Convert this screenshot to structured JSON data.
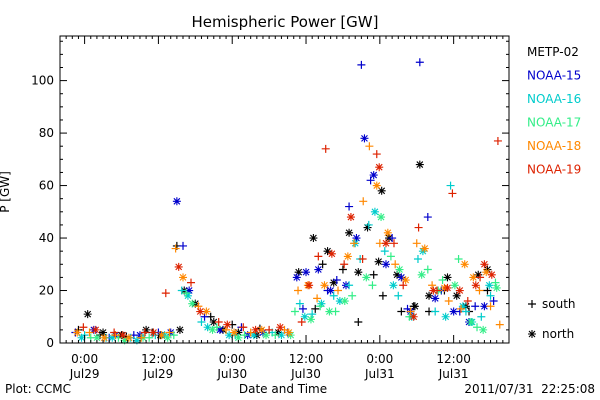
{
  "chart_data": {
    "type": "scatter",
    "title": "Hemispheric Power [GW]",
    "xlabel": "Date and Time",
    "ylabel": "P [GW]",
    "x_range_hours": [
      -4,
      69
    ],
    "ylim": [
      0,
      117
    ],
    "y_ticks": [
      0,
      20,
      40,
      60,
      80,
      100
    ],
    "x_ticks": [
      {
        "hour": 0,
        "time": "0:00",
        "date": "Jul29"
      },
      {
        "hour": 12,
        "time": "12:00",
        "date": "Jul29"
      },
      {
        "hour": 24,
        "time": "0:00",
        "date": "Jul30"
      },
      {
        "hour": 36,
        "time": "12:00",
        "date": "Jul30"
      },
      {
        "hour": 48,
        "time": "0:00",
        "date": "Jul31"
      },
      {
        "hour": 60,
        "time": "12:00",
        "date": "Jul31"
      }
    ],
    "grid": false,
    "legend_position": "right",
    "marker_legend": [
      {
        "symbol": "+",
        "label": "south"
      },
      {
        "symbol": "*",
        "label": "north"
      }
    ],
    "series": [
      {
        "name": "METP-02",
        "color": "#000000",
        "south": [
          [
            -1.0,
            5.0
          ],
          [
            2.5,
            3.0
          ],
          [
            6.8,
            2.5
          ],
          [
            11.0,
            4.0
          ],
          [
            15.0,
            37.0
          ],
          [
            20.5,
            10.0
          ],
          [
            24.0,
            7.0
          ],
          [
            28.5,
            5.5
          ],
          [
            37.5,
            13.0
          ],
          [
            38.7,
            30.0
          ],
          [
            42.0,
            28.0
          ],
          [
            44.5,
            8.0
          ],
          [
            47.0,
            26.0
          ],
          [
            48.5,
            18.0
          ],
          [
            51.5,
            12.0
          ],
          [
            53.5,
            14.0
          ],
          [
            56.0,
            12.0
          ],
          [
            58.5,
            20.0
          ],
          [
            62.5,
            12.0
          ],
          [
            65.5,
            20.0
          ]
        ],
        "north": [
          [
            0.5,
            11.0
          ],
          [
            3.0,
            4.0
          ],
          [
            6.0,
            3.0
          ],
          [
            10.0,
            5.0
          ],
          [
            12.3,
            3.0
          ],
          [
            15.5,
            5.0
          ],
          [
            16.2,
            20.0
          ],
          [
            18.0,
            15.0
          ],
          [
            21.0,
            8.0
          ],
          [
            22.5,
            5.0
          ],
          [
            25.0,
            4.0
          ],
          [
            28.0,
            3.0
          ],
          [
            31.5,
            4.0
          ],
          [
            34.8,
            27.0
          ],
          [
            37.2,
            40.0
          ],
          [
            39.5,
            35.0
          ],
          [
            40.5,
            23.0
          ],
          [
            43.0,
            42.0
          ],
          [
            44.5,
            27.0
          ],
          [
            46.0,
            44.0
          ],
          [
            47.8,
            31.0
          ],
          [
            48.3,
            58.0
          ],
          [
            49.5,
            40.0
          ],
          [
            50.8,
            26.0
          ],
          [
            53.7,
            14.0
          ],
          [
            54.5,
            68.0
          ],
          [
            56.0,
            18.0
          ],
          [
            59.0,
            25.0
          ],
          [
            60.5,
            18.0
          ],
          [
            62.0,
            14.0
          ],
          [
            64.0,
            26.0
          ],
          [
            65.5,
            28.0
          ]
        ]
      },
      {
        "name": "NOAA-15",
        "color": "#0000cc",
        "south": [
          [
            -1.5,
            4.0
          ],
          [
            4.0,
            2.0
          ],
          [
            8.0,
            3.0
          ],
          [
            12.0,
            4.0
          ],
          [
            16.0,
            37.0
          ],
          [
            19.5,
            10.0
          ],
          [
            25.5,
            6.0
          ],
          [
            33.0,
            4.0
          ],
          [
            35.5,
            13.0
          ],
          [
            39.5,
            20.0
          ],
          [
            41.0,
            24.0
          ],
          [
            43.0,
            52.0
          ],
          [
            45.0,
            106.0
          ],
          [
            46.5,
            62.0
          ],
          [
            50.0,
            40.0
          ],
          [
            52.5,
            13.0
          ],
          [
            54.5,
            107.0
          ],
          [
            55.8,
            48.0
          ],
          [
            58.0,
            20.0
          ],
          [
            61.0,
            12.0
          ],
          [
            63.5,
            14.0
          ],
          [
            66.5,
            16.0
          ]
        ],
        "north": [
          [
            1.5,
            5.0
          ],
          [
            5.0,
            3.0
          ],
          [
            9.0,
            3.0
          ],
          [
            14.0,
            4.0
          ],
          [
            15.0,
            54.0
          ],
          [
            17.0,
            20.0
          ],
          [
            22.0,
            5.0
          ],
          [
            26.5,
            3.0
          ],
          [
            29.0,
            4.0
          ],
          [
            34.5,
            25.0
          ],
          [
            36.0,
            27.0
          ],
          [
            38.0,
            28.0
          ],
          [
            40.0,
            20.0
          ],
          [
            42.5,
            22.0
          ],
          [
            44.2,
            40.0
          ],
          [
            45.5,
            78.0
          ],
          [
            47.0,
            64.0
          ],
          [
            49.0,
            30.0
          ],
          [
            51.5,
            25.0
          ],
          [
            53.0,
            12.0
          ],
          [
            57.0,
            17.0
          ],
          [
            60.0,
            12.0
          ],
          [
            62.5,
            8.0
          ],
          [
            65.0,
            14.0
          ]
        ]
      },
      {
        "name": "NOAA-16",
        "color": "#00cccc",
        "south": [
          [
            0.0,
            3.0
          ],
          [
            3.5,
            2.0
          ],
          [
            7.5,
            2.0
          ],
          [
            11.5,
            3.0
          ],
          [
            15.8,
            20.0
          ],
          [
            19.0,
            8.0
          ],
          [
            24.5,
            3.0
          ],
          [
            30.5,
            4.0
          ],
          [
            35.0,
            15.0
          ],
          [
            37.0,
            11.0
          ],
          [
            40.5,
            18.0
          ],
          [
            43.0,
            22.0
          ],
          [
            44.8,
            32.0
          ],
          [
            46.2,
            45.0
          ],
          [
            48.8,
            35.0
          ],
          [
            51.0,
            18.0
          ],
          [
            54.2,
            32.0
          ],
          [
            57.0,
            12.0
          ],
          [
            59.5,
            60.0
          ],
          [
            62.0,
            12.0
          ],
          [
            64.5,
            10.0
          ],
          [
            66.0,
            18.0
          ]
        ],
        "north": [
          [
            -0.5,
            2.0
          ],
          [
            4.5,
            2.0
          ],
          [
            8.5,
            1.0
          ],
          [
            13.0,
            3.0
          ],
          [
            16.8,
            18.0
          ],
          [
            20.0,
            6.0
          ],
          [
            23.5,
            3.0
          ],
          [
            27.5,
            3.0
          ],
          [
            32.0,
            3.0
          ],
          [
            35.8,
            10.0
          ],
          [
            38.5,
            15.0
          ],
          [
            41.5,
            16.0
          ],
          [
            44.0,
            38.0
          ],
          [
            47.2,
            50.0
          ],
          [
            50.2,
            22.0
          ],
          [
            53.2,
            10.0
          ],
          [
            55.0,
            35.0
          ],
          [
            58.7,
            10.0
          ],
          [
            61.5,
            14.0
          ],
          [
            63.0,
            8.0
          ],
          [
            65.8,
            22.0
          ]
        ]
      },
      {
        "name": "NOAA-17",
        "color": "#33ee88",
        "south": [
          [
            1.0,
            2.0
          ],
          [
            5.5,
            2.0
          ],
          [
            10.5,
            2.0
          ],
          [
            14.5,
            3.0
          ],
          [
            16.5,
            19.0
          ],
          [
            21.5,
            6.0
          ],
          [
            26.0,
            3.0
          ],
          [
            31.0,
            3.0
          ],
          [
            34.2,
            12.0
          ],
          [
            38.3,
            14.0
          ],
          [
            40.8,
            12.0
          ],
          [
            43.5,
            18.0
          ],
          [
            46.8,
            22.0
          ],
          [
            49.8,
            33.0
          ],
          [
            52.8,
            10.0
          ],
          [
            55.8,
            28.0
          ],
          [
            58.2,
            24.0
          ],
          [
            60.8,
            32.0
          ],
          [
            63.8,
            6.0
          ],
          [
            66.8,
            23.0
          ]
        ],
        "north": [
          [
            2.0,
            2.0
          ],
          [
            6.5,
            1.0
          ],
          [
            9.5,
            2.0
          ],
          [
            13.5,
            2.0
          ],
          [
            17.5,
            15.0
          ],
          [
            20.8,
            5.0
          ],
          [
            25.0,
            2.0
          ],
          [
            29.5,
            3.0
          ],
          [
            33.5,
            3.0
          ],
          [
            36.8,
            9.0
          ],
          [
            39.8,
            12.0
          ],
          [
            42.3,
            16.0
          ],
          [
            45.8,
            25.0
          ],
          [
            48.2,
            48.0
          ],
          [
            51.2,
            28.0
          ],
          [
            54.8,
            26.0
          ],
          [
            57.5,
            20.0
          ],
          [
            60.2,
            22.0
          ],
          [
            62.8,
            8.0
          ],
          [
            64.8,
            5.0
          ],
          [
            67.0,
            21.0
          ]
        ]
      },
      {
        "name": "NOAA-18",
        "color": "#ff8800",
        "south": [
          [
            0.8,
            4.0
          ],
          [
            5.0,
            3.0
          ],
          [
            9.2,
            2.0
          ],
          [
            13.8,
            4.0
          ],
          [
            14.8,
            36.0
          ],
          [
            18.5,
            14.0
          ],
          [
            23.0,
            5.0
          ],
          [
            27.0,
            4.0
          ],
          [
            32.5,
            5.0
          ],
          [
            34.7,
            20.0
          ],
          [
            37.8,
            17.0
          ],
          [
            41.2,
            20.0
          ],
          [
            43.8,
            38.0
          ],
          [
            45.3,
            54.0
          ],
          [
            46.3,
            75.0
          ],
          [
            48.0,
            38.0
          ],
          [
            50.5,
            30.0
          ],
          [
            53.0,
            12.0
          ],
          [
            54.0,
            38.0
          ],
          [
            56.5,
            22.0
          ],
          [
            59.2,
            16.0
          ],
          [
            61.2,
            13.0
          ],
          [
            64.2,
            20.0
          ],
          [
            66.0,
            14.0
          ],
          [
            67.5,
            7.0
          ]
        ],
        "north": [
          [
            -1.2,
            4.0
          ],
          [
            3.2,
            2.0
          ],
          [
            7.2,
            2.0
          ],
          [
            12.5,
            3.0
          ],
          [
            16.0,
            25.0
          ],
          [
            19.8,
            12.0
          ],
          [
            24.3,
            4.0
          ],
          [
            28.8,
            5.0
          ],
          [
            33.2,
            4.0
          ],
          [
            36.3,
            22.0
          ],
          [
            39.0,
            22.0
          ],
          [
            42.8,
            33.0
          ],
          [
            47.5,
            60.0
          ],
          [
            49.3,
            42.0
          ],
          [
            52.2,
            24.0
          ],
          [
            55.3,
            36.0
          ],
          [
            58.5,
            21.0
          ],
          [
            61.8,
            30.0
          ],
          [
            63.2,
            25.0
          ],
          [
            65.3,
            27.0
          ]
        ]
      },
      {
        "name": "NOAA-19",
        "color": "#dd2200",
        "south": [
          [
            -0.2,
            6.0
          ],
          [
            4.8,
            4.0
          ],
          [
            9.8,
            4.0
          ],
          [
            13.2,
            19.0
          ],
          [
            17.3,
            23.0
          ],
          [
            21.8,
            8.0
          ],
          [
            25.8,
            6.0
          ],
          [
            30.0,
            5.0
          ],
          [
            35.3,
            8.0
          ],
          [
            38.0,
            33.0
          ],
          [
            39.2,
            74.0
          ],
          [
            42.2,
            30.0
          ],
          [
            45.2,
            32.0
          ],
          [
            47.5,
            72.0
          ],
          [
            50.3,
            38.0
          ],
          [
            51.8,
            22.0
          ],
          [
            54.3,
            44.0
          ],
          [
            57.3,
            20.0
          ],
          [
            59.8,
            57.0
          ],
          [
            62.3,
            16.0
          ],
          [
            64.3,
            25.0
          ],
          [
            67.2,
            77.0
          ]
        ],
        "north": [
          [
            1.8,
            5.0
          ],
          [
            6.2,
            3.0
          ],
          [
            11.2,
            4.0
          ],
          [
            15.3,
            29.0
          ],
          [
            18.8,
            12.0
          ],
          [
            23.2,
            7.0
          ],
          [
            27.8,
            5.0
          ],
          [
            31.8,
            6.0
          ],
          [
            36.5,
            22.0
          ],
          [
            40.2,
            34.0
          ],
          [
            43.3,
            48.0
          ],
          [
            47.9,
            67.0
          ],
          [
            49.0,
            38.0
          ],
          [
            53.5,
            10.0
          ],
          [
            56.7,
            20.0
          ],
          [
            59.0,
            21.0
          ],
          [
            61.0,
            20.0
          ],
          [
            63.6,
            22.0
          ],
          [
            65.0,
            30.0
          ],
          [
            66.2,
            26.0
          ]
        ]
      }
    ]
  },
  "footer": {
    "left": "Plot: CCMC",
    "right": "2011/07/31  22:25:08"
  }
}
